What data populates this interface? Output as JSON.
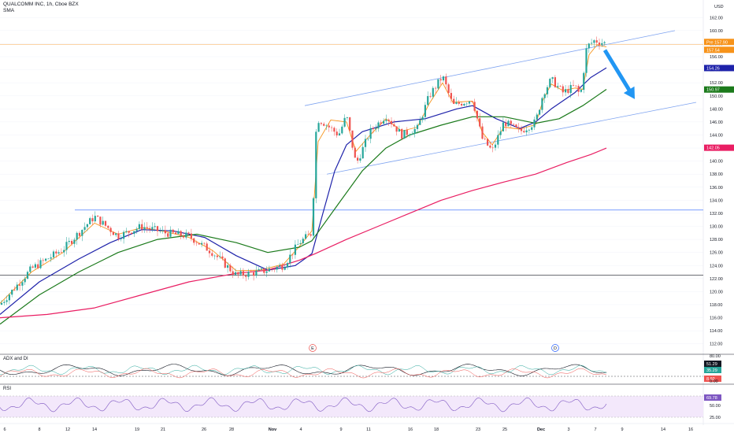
{
  "header": {
    "symbol": "QUALCOMM INC, 1h, Cboe BZX",
    "indicator": "SMA",
    "currency": "USD"
  },
  "panes": {
    "adx_label": "ADX and DI",
    "rsi_label": "RSI"
  },
  "events": [
    {
      "letter": "E",
      "x_index": 393
    },
    {
      "letter": "D",
      "x_index": 701
    }
  ],
  "price_badges": [
    {
      "text": "Pre 157.90",
      "value": 157.9,
      "color": "#f7931a"
    },
    {
      "text": "157.54",
      "value": 157.54,
      "color": "#f7931a"
    },
    {
      "text": "154.26",
      "value": 154.26,
      "color": "#1e22aa"
    },
    {
      "text": "150.97",
      "value": 150.97,
      "color": "#1b7a1b"
    },
    {
      "text": "142.05",
      "value": 142.05,
      "color": "#e91e63"
    }
  ],
  "adx_badges": [
    {
      "text": "51.29",
      "color": "#131722"
    },
    {
      "text": "35.29",
      "color": "#26a69a"
    },
    {
      "text": "8.92",
      "color": "#ef5350"
    }
  ],
  "rsi_badges": [
    {
      "text": "69.78",
      "color": "#7e57c2"
    }
  ],
  "chart_data": {
    "type": "line",
    "title": "QUALCOMM INC, 1h, Cboe BZX",
    "y_range": [
      111.0,
      163.0
    ],
    "y_ticks": [
      112,
      114,
      116,
      118,
      120,
      122,
      124,
      126,
      128,
      130,
      132,
      134,
      136,
      138,
      140,
      142,
      144,
      146,
      148,
      150,
      152,
      154,
      156,
      158,
      160,
      162
    ],
    "x_ticks": [
      "6",
      "8",
      "12",
      "14",
      "19",
      "21",
      "26",
      "28",
      "Nov",
      "4",
      "9",
      "11",
      "16",
      "18",
      "23",
      "25",
      "Dec",
      "3",
      "7",
      "9",
      "14",
      "16"
    ],
    "price_path": [
      [
        0,
        118.0
      ],
      [
        40,
        123.5
      ],
      [
        80,
        126.5
      ],
      [
        120,
        131.5
      ],
      [
        150,
        128.5
      ],
      [
        180,
        130.0
      ],
      [
        210,
        129.0
      ],
      [
        240,
        128.5
      ],
      [
        270,
        126.0
      ],
      [
        300,
        122.5
      ],
      [
        330,
        123.0
      ],
      [
        360,
        124.0
      ],
      [
        380,
        127.5
      ],
      [
        396,
        129.0
      ],
      [
        402,
        146.5
      ],
      [
        410,
        146.0
      ],
      [
        430,
        144.0
      ],
      [
        440,
        147.0
      ],
      [
        452,
        139.5
      ],
      [
        470,
        144.5
      ],
      [
        490,
        147.0
      ],
      [
        510,
        144.0
      ],
      [
        530,
        145.0
      ],
      [
        545,
        150.0
      ],
      [
        562,
        153.0
      ],
      [
        575,
        148.5
      ],
      [
        600,
        149.5
      ],
      [
        612,
        143.5
      ],
      [
        625,
        141.5
      ],
      [
        640,
        146.0
      ],
      [
        660,
        144.5
      ],
      [
        680,
        146.0
      ],
      [
        690,
        150.5
      ],
      [
        700,
        152.5
      ],
      [
        715,
        150.5
      ],
      [
        730,
        151.5
      ],
      [
        737,
        150.0
      ],
      [
        745,
        157.5
      ],
      [
        755,
        158.5
      ],
      [
        770,
        158.0
      ]
    ],
    "series": [
      {
        "name": "SMA",
        "color": "#f7931a",
        "values": [
          [
            0,
            118.2
          ],
          [
            40,
            123.0
          ],
          [
            80,
            126.0
          ],
          [
            120,
            130.5
          ],
          [
            150,
            128.8
          ],
          [
            180,
            129.8
          ],
          [
            210,
            129.2
          ],
          [
            240,
            128.3
          ],
          [
            270,
            126.3
          ],
          [
            300,
            123.2
          ],
          [
            330,
            123.3
          ],
          [
            360,
            124.2
          ],
          [
            380,
            126.9
          ],
          [
            396,
            129.3
          ],
          [
            404,
            143.0
          ],
          [
            420,
            146.3
          ],
          [
            440,
            146.0
          ],
          [
            452,
            141.5
          ],
          [
            470,
            144.0
          ],
          [
            490,
            146.5
          ],
          [
            510,
            144.6
          ],
          [
            530,
            145.2
          ],
          [
            545,
            148.8
          ],
          [
            562,
            152.0
          ],
          [
            575,
            149.0
          ],
          [
            600,
            149.2
          ],
          [
            612,
            144.5
          ],
          [
            625,
            142.5
          ],
          [
            640,
            145.2
          ],
          [
            660,
            144.9
          ],
          [
            680,
            145.6
          ],
          [
            690,
            149.5
          ],
          [
            700,
            151.8
          ],
          [
            715,
            150.8
          ],
          [
            730,
            151.2
          ],
          [
            740,
            151.0
          ],
          [
            748,
            156.3
          ],
          [
            758,
            157.8
          ],
          [
            770,
            157.5
          ]
        ]
      },
      {
        "name": "",
        "color": "#1e22aa",
        "values": [
          [
            0,
            116.5
          ],
          [
            50,
            121.5
          ],
          [
            100,
            125.0
          ],
          [
            140,
            127.5
          ],
          [
            180,
            129.5
          ],
          [
            220,
            129.3
          ],
          [
            260,
            128.3
          ],
          [
            300,
            125.5
          ],
          [
            340,
            123.3
          ],
          [
            375,
            124.0
          ],
          [
            396,
            125.8
          ],
          [
            410,
            132.0
          ],
          [
            425,
            138.5
          ],
          [
            440,
            142.5
          ],
          [
            460,
            144.5
          ],
          [
            500,
            146.0
          ],
          [
            540,
            146.5
          ],
          [
            580,
            148.0
          ],
          [
            600,
            148.5
          ],
          [
            630,
            146.5
          ],
          [
            660,
            145.0
          ],
          [
            680,
            146.0
          ],
          [
            700,
            148.0
          ],
          [
            730,
            150.5
          ],
          [
            750,
            152.8
          ],
          [
            770,
            154.3
          ]
        ]
      },
      {
        "name": "",
        "color": "#1b7a1b",
        "values": [
          [
            0,
            115.0
          ],
          [
            50,
            119.5
          ],
          [
            100,
            123.0
          ],
          [
            150,
            126.0
          ],
          [
            200,
            128.0
          ],
          [
            250,
            128.8
          ],
          [
            300,
            127.5
          ],
          [
            340,
            126.0
          ],
          [
            380,
            126.8
          ],
          [
            396,
            127.8
          ],
          [
            430,
            133.5
          ],
          [
            460,
            138.5
          ],
          [
            490,
            142.0
          ],
          [
            520,
            144.0
          ],
          [
            560,
            145.5
          ],
          [
            600,
            146.8
          ],
          [
            640,
            146.8
          ],
          [
            680,
            145.8
          ],
          [
            710,
            146.5
          ],
          [
            740,
            148.5
          ],
          [
            770,
            151.0
          ]
        ]
      },
      {
        "name": "",
        "color": "#e91e63",
        "values": [
          [
            0,
            116.0
          ],
          [
            60,
            116.5
          ],
          [
            120,
            117.5
          ],
          [
            180,
            119.5
          ],
          [
            240,
            121.5
          ],
          [
            300,
            122.8
          ],
          [
            340,
            123.3
          ],
          [
            380,
            124.8
          ],
          [
            400,
            125.8
          ],
          [
            440,
            128.0
          ],
          [
            480,
            130.0
          ],
          [
            520,
            132.0
          ],
          [
            560,
            134.0
          ],
          [
            600,
            135.5
          ],
          [
            640,
            136.8
          ],
          [
            680,
            138.0
          ],
          [
            720,
            139.8
          ],
          [
            750,
            141.0
          ],
          [
            770,
            142.0
          ]
        ]
      }
    ],
    "channel": {
      "upper": [
        [
          387,
          148.5
        ],
        [
          857,
          160.0
        ]
      ],
      "lower": [
        [
          415,
          138.0
        ],
        [
          884,
          149.0
        ]
      ]
    },
    "horizontal_levels": [
      {
        "value": 132.5,
        "x_start": 95,
        "color": "#2962ff"
      },
      {
        "value": 122.5,
        "x_start": 0,
        "color": "#131722"
      },
      {
        "value": 157.9,
        "x_start": 0,
        "color": "#f7931a"
      }
    ],
    "arrow": {
      "from": [
        768,
        157.0
      ],
      "to": [
        806,
        149.5
      ],
      "color": "#2196f3"
    }
  }
}
